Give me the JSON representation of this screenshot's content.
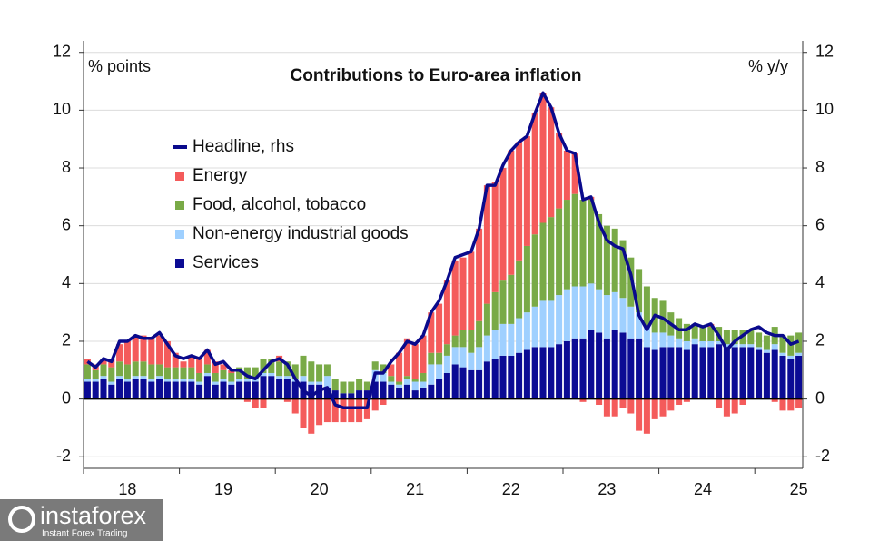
{
  "chart_data": {
    "type": "bar",
    "stacked": true,
    "title": "Contributions to Euro-area inflation",
    "y_label": "% points",
    "y2_label": "% y/y",
    "categories": [
      null,
      null,
      null,
      null,
      null,
      "18",
      null,
      null,
      null,
      null,
      null,
      null,
      null,
      null,
      null,
      null,
      null,
      "19",
      null,
      null,
      null,
      null,
      null,
      null,
      null,
      null,
      null,
      null,
      null,
      "20",
      null,
      null,
      null,
      null,
      null,
      null,
      null,
      null,
      null,
      null,
      null,
      "21",
      null,
      null,
      null,
      null,
      null,
      null,
      null,
      null,
      null,
      null,
      null,
      "22",
      null,
      null,
      null,
      null,
      null,
      null,
      null,
      null,
      null,
      null,
      null,
      "23",
      null,
      null,
      null,
      null,
      null,
      null,
      null,
      null,
      null,
      null,
      null,
      "24",
      null,
      null,
      null,
      null,
      null,
      null,
      null,
      null,
      null,
      null,
      null,
      "25"
    ],
    "ylim": [
      -2.4,
      12.4
    ],
    "yticks": [
      -2,
      0,
      2,
      4,
      6,
      8,
      10,
      12
    ],
    "y2lim": [
      -2.4,
      12.4
    ],
    "y2ticks": [
      -2,
      0,
      2,
      4,
      6,
      8,
      10,
      12
    ],
    "grid": true,
    "legend": "upper left",
    "series": [
      {
        "name": "Services",
        "color": "#0b0b94",
        "values": [
          0.6,
          0.6,
          0.7,
          0.5,
          0.7,
          0.6,
          0.7,
          0.7,
          0.6,
          0.7,
          0.6,
          0.6,
          0.6,
          0.6,
          0.5,
          0.8,
          0.5,
          0.6,
          0.5,
          0.6,
          0.6,
          0.6,
          0.8,
          0.8,
          0.7,
          0.7,
          0.6,
          0.6,
          0.5,
          0.5,
          0.4,
          0.3,
          0.2,
          0.2,
          0.3,
          0.3,
          0.6,
          0.6,
          0.5,
          0.4,
          0.5,
          0.3,
          0.4,
          0.5,
          0.7,
          0.9,
          1.2,
          1.1,
          1.0,
          1.0,
          1.3,
          1.4,
          1.5,
          1.5,
          1.6,
          1.7,
          1.8,
          1.8,
          1.8,
          1.9,
          2.0,
          2.1,
          2.1,
          2.4,
          2.3,
          2.1,
          2.4,
          2.3,
          2.1,
          2.1,
          1.8,
          1.7,
          1.8,
          1.8,
          1.8,
          1.7,
          1.9,
          1.8,
          1.8,
          1.9,
          1.8,
          1.8,
          1.8,
          1.8,
          1.7,
          1.6,
          1.7,
          1.5,
          1.4,
          1.5
        ]
      },
      {
        "name": "Non-energy industrial goods",
        "color": "#9fd0ff",
        "values": [
          0.1,
          0.1,
          0.1,
          0.1,
          0.1,
          0.1,
          0.1,
          0.1,
          0.1,
          0.1,
          0.1,
          0.1,
          0.1,
          0.1,
          0.1,
          0.1,
          0.1,
          0.1,
          0.1,
          0.1,
          0.1,
          0.1,
          0.1,
          0.1,
          0.1,
          0.1,
          0.1,
          0.2,
          0.1,
          0.1,
          0.4,
          0.0,
          0.0,
          0.0,
          0.0,
          0.0,
          0.4,
          0.3,
          0.1,
          0.1,
          0.2,
          0.3,
          0.2,
          0.7,
          0.5,
          0.6,
          0.6,
          0.7,
          0.6,
          0.8,
          0.9,
          1.0,
          1.1,
          1.1,
          1.2,
          1.3,
          1.4,
          1.6,
          1.6,
          1.7,
          1.8,
          1.8,
          1.8,
          1.6,
          1.5,
          1.5,
          1.3,
          1.2,
          1.1,
          0.9,
          0.7,
          0.6,
          0.5,
          0.4,
          0.3,
          0.3,
          0.2,
          0.2,
          0.2,
          0.1,
          0.1,
          0.1,
          0.1,
          0.1,
          0.1,
          0.1,
          0.2,
          0.1,
          0.1,
          0.1
        ]
      },
      {
        "name": "Food, alcohol, tobacco",
        "color": "#79aa47",
        "values": [
          0.5,
          0.3,
          0.4,
          0.5,
          0.5,
          0.5,
          0.5,
          0.5,
          0.5,
          0.4,
          0.4,
          0.4,
          0.4,
          0.4,
          0.3,
          0.3,
          0.3,
          0.3,
          0.3,
          0.4,
          0.4,
          0.4,
          0.5,
          0.5,
          0.5,
          0.5,
          0.5,
          0.7,
          0.7,
          0.6,
          0.4,
          0.4,
          0.4,
          0.4,
          0.4,
          0.3,
          0.3,
          0.3,
          0.2,
          0.1,
          0.1,
          0.1,
          0.3,
          0.4,
          0.4,
          0.4,
          0.4,
          0.6,
          0.8,
          0.9,
          1.1,
          1.3,
          1.5,
          1.7,
          2.0,
          2.3,
          2.5,
          2.7,
          2.9,
          3.0,
          3.1,
          3.2,
          3.0,
          2.9,
          2.6,
          2.4,
          2.2,
          2.0,
          1.7,
          1.5,
          1.4,
          1.2,
          1.1,
          0.8,
          0.7,
          0.6,
          0.5,
          0.5,
          0.5,
          0.5,
          0.5,
          0.5,
          0.5,
          0.5,
          0.5,
          0.5,
          0.6,
          0.6,
          0.7,
          0.7
        ]
      },
      {
        "name": "Energy",
        "color": "#f45b5b",
        "values": [
          0.2,
          0.2,
          0.2,
          0.3,
          0.6,
          0.8,
          0.9,
          0.9,
          0.9,
          1.0,
          0.9,
          0.5,
          0.2,
          0.4,
          0.5,
          0.5,
          0.4,
          0.2,
          0.1,
          0.0,
          -0.1,
          -0.3,
          -0.3,
          0.0,
          0.2,
          -0.1,
          -0.5,
          -1.0,
          -1.2,
          -0.9,
          -0.8,
          -0.8,
          -0.8,
          -0.8,
          -0.8,
          -0.7,
          -0.4,
          -0.2,
          0.4,
          1.0,
          1.3,
          1.2,
          1.3,
          1.4,
          1.7,
          2.2,
          2.6,
          2.5,
          2.7,
          3.2,
          4.1,
          3.8,
          3.9,
          4.3,
          4.1,
          3.8,
          4.2,
          4.5,
          3.8,
          2.6,
          1.7,
          1.4,
          -0.1,
          0.1,
          -0.2,
          -0.6,
          -0.6,
          -0.3,
          -0.5,
          -1.1,
          -1.2,
          -0.7,
          -0.6,
          -0.4,
          -0.2,
          -0.1,
          0.0,
          0.0,
          0.1,
          -0.3,
          -0.6,
          -0.5,
          -0.2,
          0.0,
          0.0,
          0.0,
          -0.1,
          -0.4,
          -0.4,
          -0.3
        ]
      },
      {
        "name": "Headline, rhs",
        "type": "line",
        "axis": "y2",
        "color": "#0a0a8c",
        "values": [
          1.3,
          1.1,
          1.4,
          1.3,
          2.0,
          2.0,
          2.2,
          2.1,
          2.1,
          2.3,
          1.9,
          1.5,
          1.4,
          1.5,
          1.4,
          1.7,
          1.2,
          1.3,
          1.0,
          1.0,
          0.8,
          0.7,
          1.0,
          1.3,
          1.4,
          1.2,
          0.7,
          0.3,
          0.1,
          0.3,
          0.4,
          -0.2,
          -0.3,
          -0.3,
          -0.3,
          -0.3,
          0.9,
          0.9,
          1.3,
          1.6,
          2.0,
          1.9,
          2.2,
          3.0,
          3.4,
          4.1,
          4.9,
          5.0,
          5.1,
          5.9,
          7.4,
          7.4,
          8.1,
          8.6,
          8.9,
          9.1,
          9.9,
          10.6,
          10.1,
          9.2,
          8.6,
          8.5,
          6.9,
          7.0,
          6.1,
          5.5,
          5.3,
          5.2,
          4.3,
          2.9,
          2.4,
          2.9,
          2.8,
          2.6,
          2.4,
          2.4,
          2.6,
          2.5,
          2.6,
          2.2,
          1.7,
          2.0,
          2.2,
          2.4,
          2.5,
          2.3,
          2.2,
          2.2,
          1.9,
          2.0
        ]
      }
    ]
  },
  "watermark": {
    "brand": "instaforex",
    "tagline": "Instant Forex Trading"
  }
}
